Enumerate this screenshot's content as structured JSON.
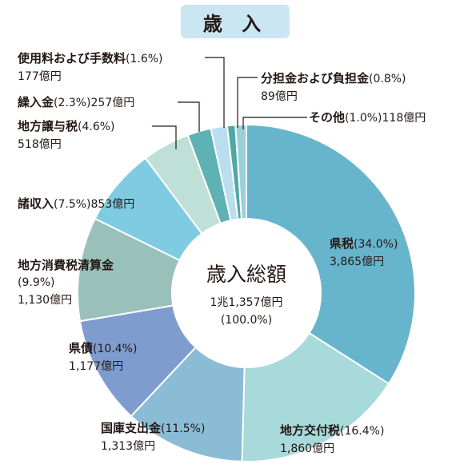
{
  "header": {
    "title": "歳 入"
  },
  "center": {
    "title": "歳入総額",
    "total": "1兆1,357億円",
    "percent": "(100.0%)"
  },
  "labels": {
    "shiyoryo": {
      "name": "使用料および手数料",
      "pct": "(1.6%)",
      "amt": "177億円"
    },
    "bunkatsu": {
      "name": "分担金および負担金",
      "pct": "(0.8%)",
      "amt": "89億円"
    },
    "kuriire": {
      "name": "繰入金",
      "pct": "(2.3%)",
      "amt": "257億円"
    },
    "sonota": {
      "name": "その他",
      "pct": "(1.0%)",
      "amt": "118億円"
    },
    "jouyo": {
      "name": "地方譲与税",
      "pct": "(4.6%)",
      "amt": "518億円"
    },
    "shoshunyu": {
      "name": "諸収入",
      "pct": "(7.5%)",
      "amt": "853億円"
    },
    "shohi": {
      "name": "地方消費税清算金",
      "pct": "(9.9%)",
      "amt": "1,130億円"
    },
    "kensai": {
      "name": "県債",
      "pct": "(10.4%)",
      "amt": "1,177億円"
    },
    "kokko": {
      "name": "国庫支出金",
      "pct": "(11.5%)",
      "amt": "1,313億円"
    },
    "kofu": {
      "name": "地方交付税",
      "pct": "(16.4%)",
      "amt": "1,860億円"
    },
    "kenzei": {
      "name": "県税",
      "pct": "(34.0%)",
      "amt": "3,865億円"
    }
  },
  "chart_data": {
    "type": "pie",
    "title": "歳 入",
    "center_text": "歳入総額 1兆1,357億円 (100.0%)",
    "unit": "億円",
    "slices": [
      {
        "name": "県税",
        "percent": 34.0,
        "value": 3865,
        "color": "#67b5cc"
      },
      {
        "name": "地方交付税",
        "percent": 16.4,
        "value": 1860,
        "color": "#a8d9db"
      },
      {
        "name": "国庫支出金",
        "percent": 11.5,
        "value": 1313,
        "color": "#8bbcd6"
      },
      {
        "name": "県債",
        "percent": 10.4,
        "value": 1177,
        "color": "#7f9ccf"
      },
      {
        "name": "地方消費税清算金",
        "percent": 9.9,
        "value": 1130,
        "color": "#9ac0ba"
      },
      {
        "name": "諸収入",
        "percent": 7.5,
        "value": 853,
        "color": "#7fcbe2"
      },
      {
        "name": "地方譲与税",
        "percent": 4.6,
        "value": 518,
        "color": "#bfe0d6"
      },
      {
        "name": "繰入金",
        "percent": 2.3,
        "value": 257,
        "color": "#5fb2b3"
      },
      {
        "name": "使用料および手数料",
        "percent": 1.6,
        "value": 177,
        "color": "#b9def0"
      },
      {
        "name": "分担金および負担金",
        "percent": 0.8,
        "value": 89,
        "color": "#4fa8a6"
      },
      {
        "name": "その他",
        "percent": 1.0,
        "value": 118,
        "color": "#9cd0d8"
      }
    ]
  }
}
